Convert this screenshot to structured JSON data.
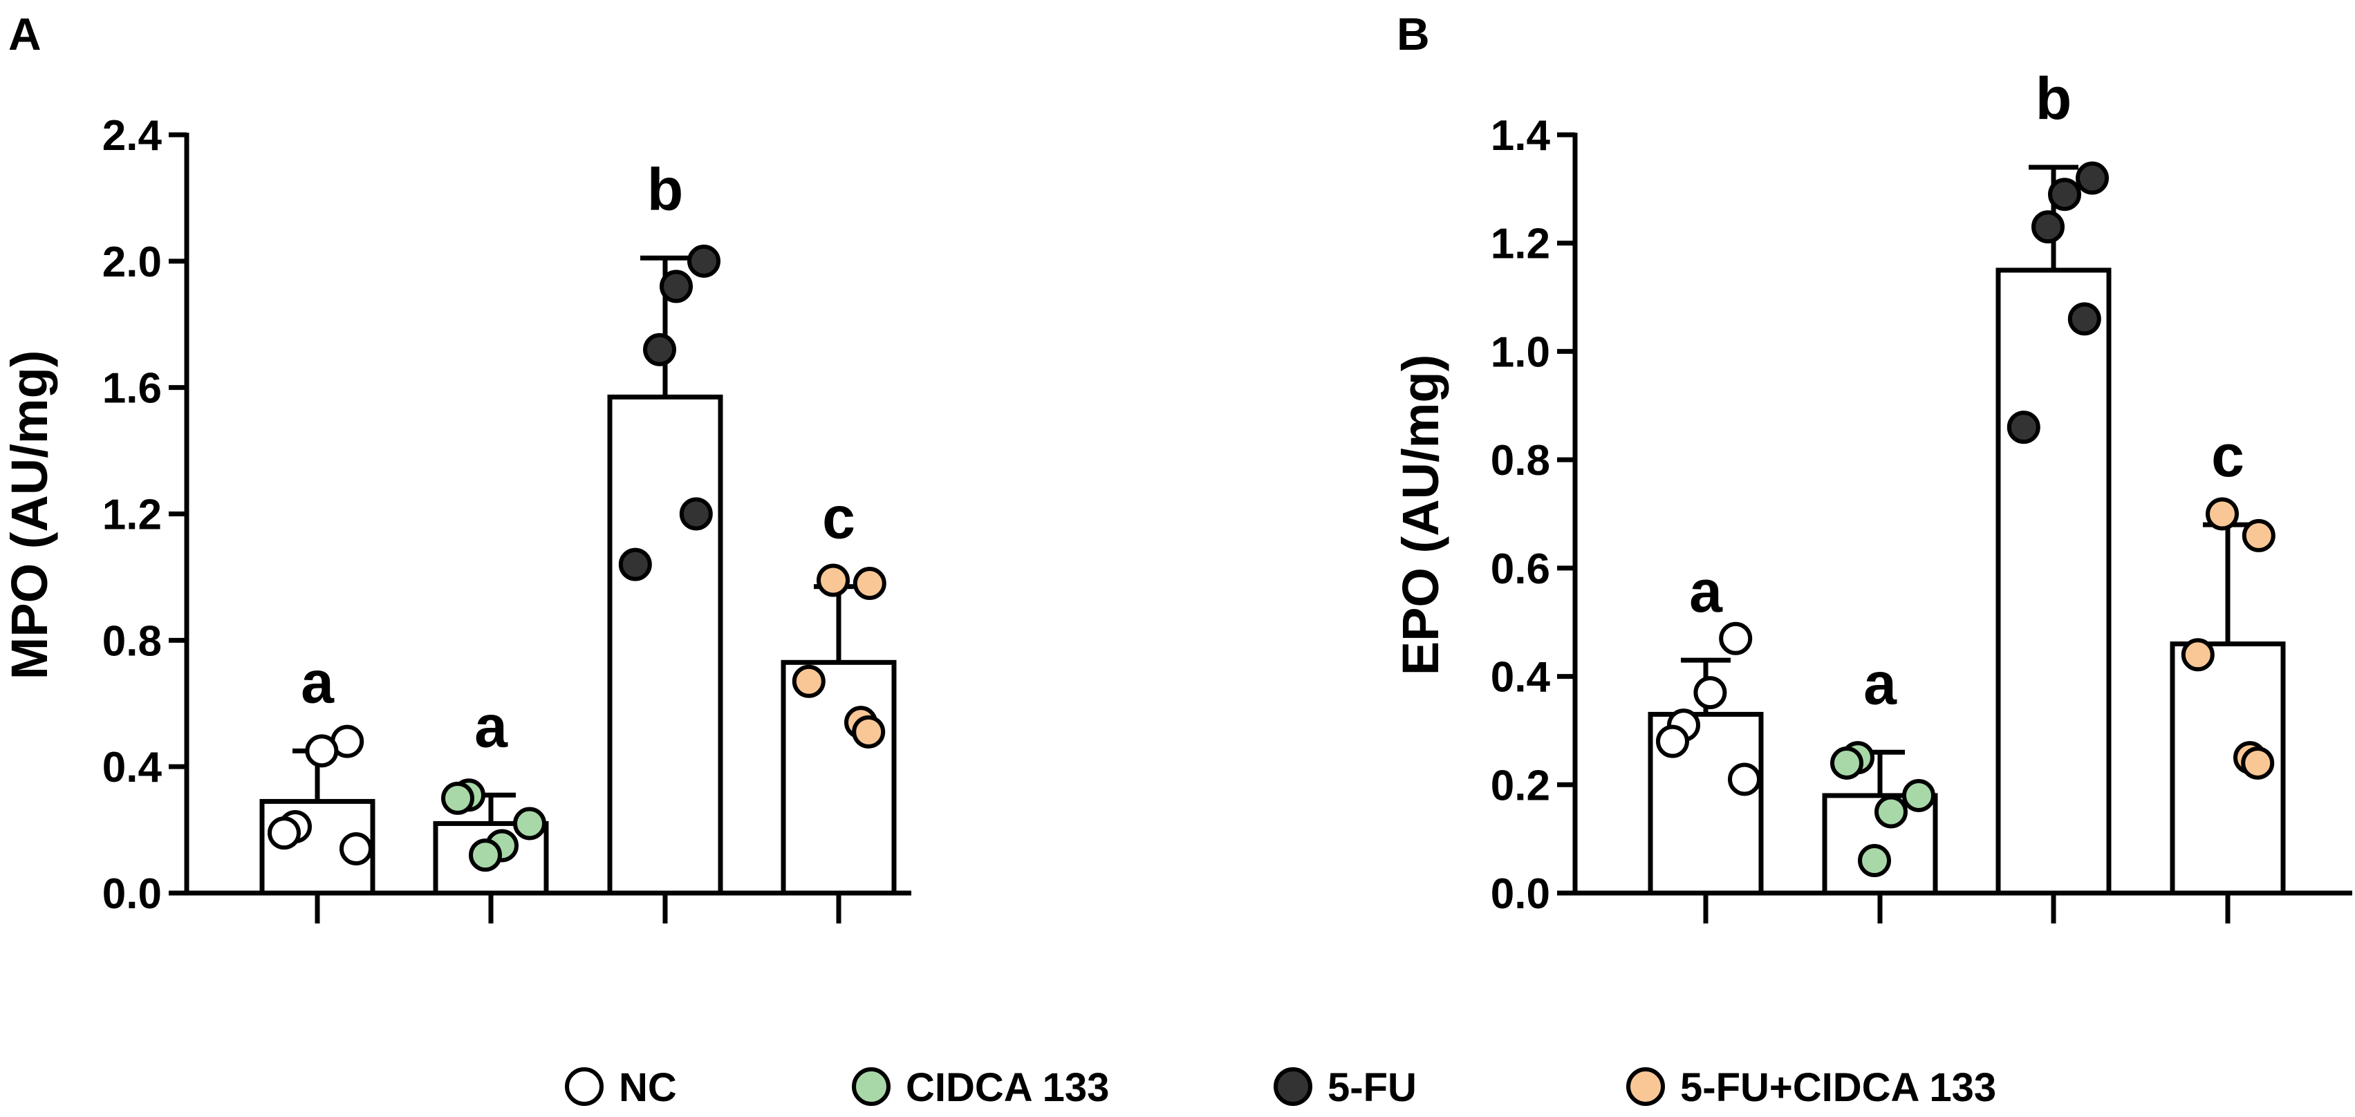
{
  "chart_data": [
    {
      "panel": "A",
      "type": "bar",
      "ylabel": "MPO (AU/mg)",
      "xlabel": "",
      "ylim": [
        0,
        2.4
      ],
      "yticks": [
        "0.0",
        "0.4",
        "0.8",
        "1.2",
        "1.6",
        "2.0",
        "2.4"
      ],
      "error_bars": "mean + SD (upper only)",
      "bars": [
        {
          "group": "NC",
          "mean": 0.29,
          "sd": 0.16,
          "sig": "a",
          "points": [
            0.48,
            0.45,
            0.21,
            0.19,
            0.14
          ]
        },
        {
          "group": "CIDCA 133",
          "mean": 0.22,
          "sd": 0.09,
          "sig": "a",
          "points": [
            0.31,
            0.3,
            0.22,
            0.15,
            0.12
          ]
        },
        {
          "group": "5-FU",
          "mean": 1.57,
          "sd": 0.44,
          "sig": "b",
          "points": [
            2.0,
            1.92,
            1.72,
            1.2,
            1.04
          ]
        },
        {
          "group": "5-FU+CIDCA 133",
          "mean": 0.73,
          "sd": 0.24,
          "sig": "c",
          "points": [
            0.99,
            0.98,
            0.67,
            0.54,
            0.51
          ]
        }
      ]
    },
    {
      "panel": "B",
      "type": "bar",
      "ylabel": "EPO (AU/mg)",
      "xlabel": "",
      "ylim": [
        0,
        1.4
      ],
      "yticks": [
        "0.0",
        "0.2",
        "0.4",
        "0.6",
        "0.8",
        "1.0",
        "1.2",
        "1.4"
      ],
      "error_bars": "mean + SD (upper only)",
      "bars": [
        {
          "group": "NC",
          "mean": 0.33,
          "sd": 0.1,
          "sig": "a",
          "points": [
            0.47,
            0.37,
            0.31,
            0.28,
            0.21
          ]
        },
        {
          "group": "CIDCA 133",
          "mean": 0.18,
          "sd": 0.08,
          "sig": "a",
          "points": [
            0.25,
            0.24,
            0.18,
            0.15,
            0.06
          ]
        },
        {
          "group": "5-FU",
          "mean": 1.15,
          "sd": 0.19,
          "sig": "b",
          "points": [
            1.32,
            1.29,
            1.23,
            1.06,
            0.86
          ]
        },
        {
          "group": "5-FU+CIDCA 133",
          "mean": 0.46,
          "sd": 0.22,
          "sig": "c",
          "points": [
            0.7,
            0.66,
            0.44,
            0.25,
            0.24
          ]
        }
      ]
    }
  ],
  "legend": {
    "placement": "bottom-center",
    "items": [
      {
        "label": "NC",
        "color": "#ffffff"
      },
      {
        "label": "CIDCA 133",
        "color": "#a8d8a8"
      },
      {
        "label": "5-FU",
        "color": "#333333"
      },
      {
        "label": "5-FU+CIDCA 133",
        "color": "#f9c796"
      }
    ]
  },
  "group_colors": {
    "NC": "#ffffff",
    "CIDCA 133": "#a8d8a8",
    "5-FU": "#333333",
    "5-FU+CIDCA 133": "#f9c796"
  }
}
